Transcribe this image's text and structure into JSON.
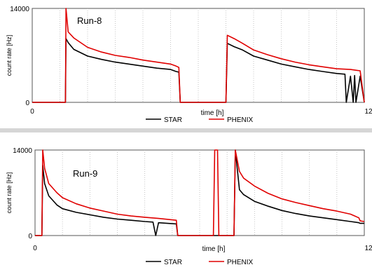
{
  "chart_data": [
    {
      "type": "line",
      "title": "Run-8",
      "xlabel": "time [h]",
      "ylabel": "count rate [Hz]",
      "xlim": [
        0,
        12
      ],
      "ylim": [
        0,
        14000
      ],
      "x_tick_labels": [
        "0",
        "12"
      ],
      "y_tick_labels": [
        "0",
        "14000"
      ],
      "vertical_grid": "dotted",
      "legend_position": "bottom-center",
      "series": [
        {
          "name": "STAR",
          "color": "#000000",
          "x": [
            0,
            1.15,
            1.2,
            1.22,
            1.3,
            1.5,
            2,
            2.5,
            3,
            3.5,
            4,
            4.5,
            5,
            5.2,
            5.3,
            5.35,
            5.5,
            6.9,
            7.0,
            7.05,
            7.3,
            7.6,
            8,
            8.5,
            9,
            9.5,
            10,
            10.5,
            11,
            11.3,
            11.35,
            11.5,
            11.6,
            11.65,
            11.7,
            11.85,
            12
          ],
          "values": [
            0,
            0,
            0,
            9500,
            8900,
            7900,
            6900,
            6400,
            6000,
            5700,
            5400,
            5100,
            4900,
            4600,
            4500,
            0,
            0,
            0,
            0,
            8800,
            8300,
            7800,
            6900,
            6300,
            5700,
            5300,
            4900,
            4600,
            4300,
            4200,
            0,
            3900,
            0,
            4000,
            0,
            3900,
            0
          ]
        },
        {
          "name": "PHENIX",
          "color": "#e00000",
          "x": [
            0,
            1.15,
            1.2,
            1.22,
            1.3,
            1.5,
            2,
            2.5,
            3,
            3.5,
            4,
            4.5,
            5,
            5.2,
            5.3,
            5.35,
            5.5,
            6.9,
            7.0,
            7.05,
            7.3,
            7.6,
            8,
            8.5,
            9,
            9.5,
            10,
            10.5,
            11,
            11.5,
            11.85,
            12
          ],
          "values": [
            0,
            0,
            0,
            14000,
            10500,
            9600,
            8200,
            7500,
            7000,
            6700,
            6300,
            6000,
            5700,
            5400,
            5200,
            0,
            0,
            0,
            0,
            10000,
            9500,
            8800,
            7800,
            7100,
            6500,
            6000,
            5600,
            5300,
            5000,
            4900,
            4700,
            0
          ]
        }
      ]
    },
    {
      "type": "line",
      "title": "Run-9",
      "xlabel": "time [h]",
      "ylabel": "count rate [Hz]",
      "xlim": [
        0,
        12
      ],
      "ylim": [
        0,
        14000
      ],
      "x_tick_labels": [
        "0",
        "12"
      ],
      "y_tick_labels": [
        "0",
        "14000"
      ],
      "vertical_grid": "dotted",
      "legend_position": "bottom-center",
      "series": [
        {
          "name": "STAR",
          "color": "#000000",
          "x": [
            0,
            0.2,
            0.25,
            0.28,
            0.35,
            0.5,
            0.8,
            1,
            1.5,
            2,
            2.5,
            3,
            3.5,
            4,
            4.3,
            4.4,
            4.5,
            5.15,
            5.2,
            7.2,
            7.25,
            7.3,
            7.45,
            7.6,
            8,
            8.5,
            9,
            9.5,
            10,
            10.5,
            11,
            11.5,
            11.8,
            11.85,
            12
          ],
          "values": [
            0,
            0,
            0,
            11500,
            8500,
            6500,
            5000,
            4400,
            3800,
            3400,
            3000,
            2700,
            2500,
            2300,
            2200,
            0,
            2100,
            1900,
            0,
            0,
            0,
            14000,
            7500,
            6700,
            5600,
            4800,
            4100,
            3600,
            3200,
            2900,
            2600,
            2300,
            2100,
            2000,
            2000
          ]
        },
        {
          "name": "PHENIX",
          "color": "#e00000",
          "x": [
            0,
            0.2,
            0.25,
            0.28,
            0.35,
            0.5,
            0.8,
            1,
            1.5,
            2,
            2.5,
            3,
            3.5,
            4,
            4.5,
            5.15,
            5.2,
            6.5,
            6.55,
            6.65,
            6.7,
            7.2,
            7.25,
            7.3,
            7.45,
            7.6,
            8,
            8.5,
            9,
            9.5,
            10,
            10.5,
            11,
            11.5,
            11.8,
            11.85,
            12
          ],
          "values": [
            0,
            0,
            0,
            14000,
            11000,
            8500,
            7000,
            6200,
            5200,
            4500,
            4000,
            3500,
            3200,
            3000,
            2800,
            2500,
            0,
            0,
            14000,
            14000,
            0,
            0,
            0,
            14000,
            10500,
            9400,
            8100,
            6900,
            6000,
            5400,
            4900,
            4400,
            4000,
            3500,
            2900,
            2400,
            2300
          ]
        }
      ]
    }
  ]
}
